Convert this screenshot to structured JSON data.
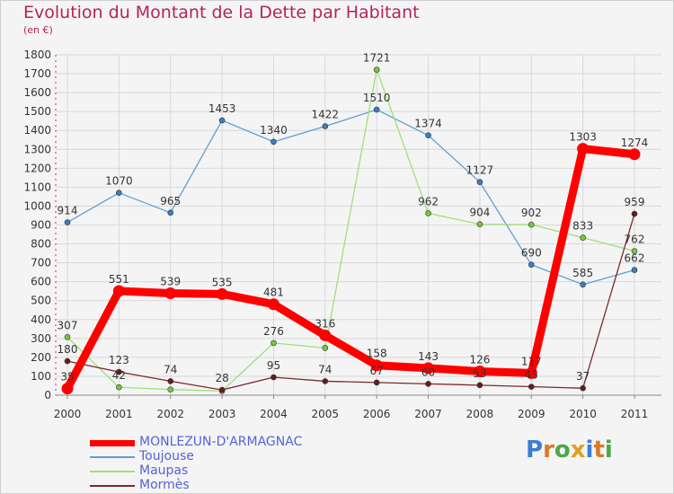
{
  "title": "Evolution du Montant de la Dette par Habitant",
  "subtitle": "(en €)",
  "brand": {
    "letters": [
      "P",
      "r",
      "o",
      "x",
      "i",
      "t",
      "i"
    ],
    "colors": [
      "#3a7fd0",
      "#d9792a",
      "#4aa84a",
      "#e0a020",
      "#3a7fd0",
      "#d9792a",
      "#4aa84a"
    ]
  },
  "chart_data": {
    "type": "line",
    "title": "Evolution du Montant de la Dette par Habitant",
    "ylabel": "(en €)",
    "xlabel": "",
    "x": [
      "2000",
      "2001",
      "2002",
      "2003",
      "2004",
      "2005",
      "2006",
      "2007",
      "2008",
      "2009",
      "2010",
      "2011"
    ],
    "ylim": [
      0,
      1800
    ],
    "yticks": [
      "0",
      "100",
      "200",
      "300",
      "400",
      "500",
      "600",
      "700",
      "800",
      "900",
      "1000",
      "1100",
      "1200",
      "1300",
      "1400",
      "1500",
      "1600",
      "1700",
      "1800"
    ],
    "grid": true,
    "legend": "bottom-left",
    "series": [
      {
        "name": "Toujouse",
        "color": "#5f9fd3",
        "point_color": "#3a7fc0",
        "values": [
          914,
          1070,
          965,
          1453,
          1340,
          1422,
          1510,
          1374,
          1127,
          690,
          585,
          662
        ]
      },
      {
        "name": "Maupas",
        "color": "#9ee07a",
        "point_color": "#74c93a",
        "values": [
          307,
          42,
          30,
          22,
          276,
          250,
          1721,
          962,
          904,
          902,
          833,
          762
        ]
      },
      {
        "name": "Mormès",
        "color": "#7a2a2a",
        "point_color": "#6b1a1a",
        "values": [
          180,
          123,
          74,
          28,
          95,
          74,
          67,
          60,
          53,
          45,
          37,
          959
        ]
      },
      {
        "name": "MONLEZUN-D'ARMAGNAC",
        "color": "#ff0000",
        "point_color": "#ff0000",
        "values": [
          35,
          551,
          539,
          535,
          481,
          316,
          158,
          143,
          126,
          117,
          1303,
          1274
        ]
      }
    ],
    "labels": [
      {
        "series": 0,
        "text": [
          "914",
          "1070",
          "965",
          "1453",
          "1340",
          "1422",
          "1510",
          "1374",
          "1127",
          "690",
          "585",
          "662"
        ]
      },
      {
        "series": 1,
        "text": [
          "307",
          "42",
          "",
          "",
          "276",
          "",
          "1721",
          "962",
          "904",
          "902",
          "833",
          "762"
        ]
      },
      {
        "series": 2,
        "text": [
          "180",
          "123",
          "74",
          "28",
          "95",
          "74",
          "67",
          "60",
          "53",
          "45",
          "37",
          "959"
        ]
      },
      {
        "series": 3,
        "text": [
          "35",
          "551",
          "539",
          "535",
          "481",
          "316",
          "158",
          "143",
          "126",
          "117",
          "1303",
          "1274"
        ]
      }
    ]
  }
}
